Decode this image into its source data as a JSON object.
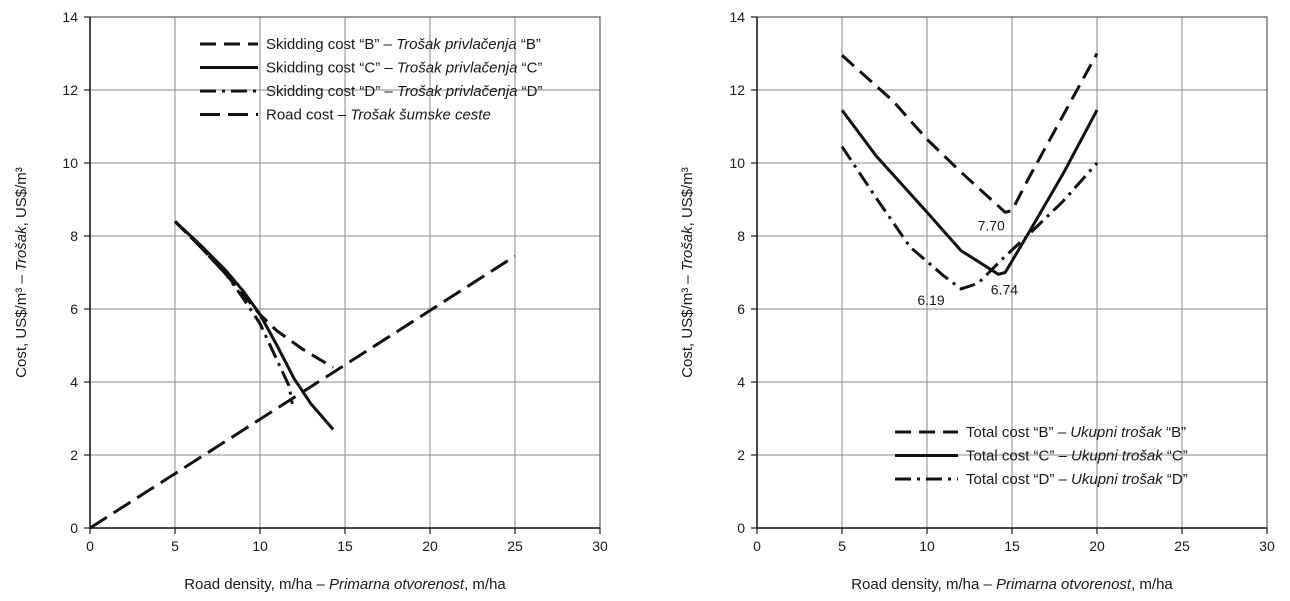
{
  "chart_data": [
    {
      "type": "line",
      "xlabel": {
        "plain": "Road density, m/ha – ",
        "italic": "Primarna otvorenost",
        "suffix": ", m/ha"
      },
      "ylabel": {
        "plain": "Cost, US$/m³ – ",
        "italic": "Trošak",
        "suffix": ", US$/m³"
      },
      "xlim": [
        0,
        30
      ],
      "ylim": [
        0,
        14
      ],
      "xticks": [
        "0",
        "5",
        "10",
        "15",
        "20",
        "25",
        "30"
      ],
      "yticks": [
        "0",
        "2",
        "4",
        "6",
        "8",
        "10",
        "12",
        "14"
      ],
      "grid": true,
      "legend_position": "top-right",
      "series": [
        {
          "name": {
            "plain": "Skidding cost “B” – ",
            "italic": "Trošak privlačenja",
            "suffix": " “B”"
          },
          "style": "dashed",
          "points": [
            [
              5,
              8.4
            ],
            [
              6.5,
              7.7
            ],
            [
              8,
              6.95
            ],
            [
              9,
              6.4
            ],
            [
              10,
              5.85
            ],
            [
              11,
              5.4
            ],
            [
              12.5,
              4.9
            ],
            [
              14.3,
              4.4
            ]
          ]
        },
        {
          "name": {
            "plain": "Skidding cost “C” – ",
            "italic": "Trošak privlačenja",
            "suffix": " “C”"
          },
          "style": "solid",
          "points": [
            [
              5,
              8.4
            ],
            [
              6.5,
              7.75
            ],
            [
              8,
              7.05
            ],
            [
              9,
              6.5
            ],
            [
              10,
              5.85
            ],
            [
              11,
              5.0
            ],
            [
              12,
              4.1
            ],
            [
              13,
              3.4
            ],
            [
              14.3,
              2.7
            ]
          ]
        },
        {
          "name": {
            "plain": "Skidding cost “D” – ",
            "italic": "Trošak privlačenja",
            "suffix": " “D”"
          },
          "style": "dashdot",
          "points": [
            [
              5,
              8.4
            ],
            [
              6.5,
              7.7
            ],
            [
              8,
              6.95
            ],
            [
              9,
              6.3
            ],
            [
              10,
              5.6
            ],
            [
              11,
              4.6
            ],
            [
              11.7,
              3.9
            ],
            [
              11.9,
              3.4
            ]
          ]
        },
        {
          "name": {
            "plain": "Road cost – ",
            "italic": "Trošak šumske ceste",
            "suffix": ""
          },
          "style": "longdash",
          "points": [
            [
              0,
              0
            ],
            [
              25,
              7.45
            ]
          ]
        }
      ]
    },
    {
      "type": "line",
      "xlabel": {
        "plain": "Road density, m/ha – ",
        "italic": "Primarna otvorenost",
        "suffix": ", m/ha"
      },
      "ylabel": {
        "plain": "Cost, US$/m³ – ",
        "italic": "Trošak",
        "suffix": ", US$/m³"
      },
      "xlim": [
        0,
        30
      ],
      "ylim": [
        0,
        14
      ],
      "xticks": [
        "0",
        "5",
        "10",
        "15",
        "20",
        "25",
        "30"
      ],
      "yticks": [
        "0",
        "2",
        "4",
        "6",
        "8",
        "10",
        "12",
        "14"
      ],
      "grid": true,
      "legend_position": "bottom-right",
      "series": [
        {
          "name": {
            "plain": "Total cost “B” – ",
            "italic": "Ukupni trošak",
            "suffix": " “B”"
          },
          "style": "dashed",
          "points": [
            [
              5,
              12.95
            ],
            [
              8,
              11.7
            ],
            [
              10,
              10.65
            ],
            [
              12,
              9.75
            ],
            [
              14.6,
              8.65
            ],
            [
              15,
              8.7
            ],
            [
              16,
              9.6
            ],
            [
              18,
              11.3
            ],
            [
              20,
              13.0
            ]
          ]
        },
        {
          "name": {
            "plain": "Total cost “C” – ",
            "italic": "Ukupni trošak",
            "suffix": " “C”"
          },
          "style": "solid",
          "points": [
            [
              5,
              11.45
            ],
            [
              7,
              10.2
            ],
            [
              10,
              8.65
            ],
            [
              12,
              7.6
            ],
            [
              14.2,
              6.95
            ],
            [
              14.6,
              7.0
            ],
            [
              16,
              8.1
            ],
            [
              18,
              9.7
            ],
            [
              20,
              11.45
            ]
          ]
        },
        {
          "name": {
            "plain": "Total cost “D” – ",
            "italic": "Ukupni trošak",
            "suffix": " “D”"
          },
          "style": "dashdot",
          "points": [
            [
              5,
              10.45
            ],
            [
              7,
              9.05
            ],
            [
              9,
              7.7
            ],
            [
              11,
              6.9
            ],
            [
              12,
              6.55
            ],
            [
              13,
              6.7
            ],
            [
              14.5,
              7.4
            ],
            [
              16,
              8.05
            ],
            [
              18,
              8.95
            ],
            [
              20,
              10.0
            ]
          ]
        }
      ],
      "annotations": [
        {
          "text": "7.70",
          "x": 14.6,
          "y": 8.65
        },
        {
          "text": "6.74",
          "x": 14.2,
          "y": 6.95
        },
        {
          "text": "6.19",
          "x": 12.0,
          "y": 6.55
        }
      ]
    }
  ]
}
